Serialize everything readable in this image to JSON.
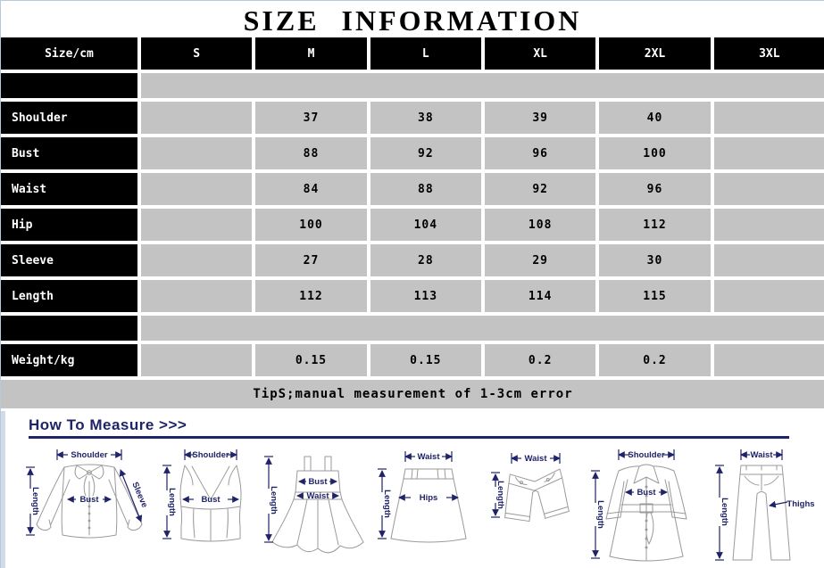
{
  "title": "SIZE INFORMATION",
  "table": {
    "header": [
      "Size/cm",
      "S",
      "M",
      "L",
      "XL",
      "2XL",
      "3XL"
    ],
    "rows": [
      {
        "type": "spacer",
        "label": ""
      },
      {
        "type": "data",
        "label": "Shoulder",
        "values": [
          "",
          "37",
          "38",
          "39",
          "40",
          ""
        ]
      },
      {
        "type": "data",
        "label": "Bust",
        "values": [
          "",
          "88",
          "92",
          "96",
          "100",
          ""
        ]
      },
      {
        "type": "data",
        "label": "Waist",
        "values": [
          "",
          "84",
          "88",
          "92",
          "96",
          ""
        ]
      },
      {
        "type": "data",
        "label": "Hip",
        "values": [
          "",
          "100",
          "104",
          "108",
          "112",
          ""
        ]
      },
      {
        "type": "data",
        "label": "Sleeve",
        "values": [
          "",
          "27",
          "28",
          "29",
          "30",
          ""
        ]
      },
      {
        "type": "data",
        "label": "Length",
        "values": [
          "",
          "112",
          "113",
          "114",
          "115",
          ""
        ]
      },
      {
        "type": "spacer",
        "label": ""
      },
      {
        "type": "data",
        "label": "Weight/kg",
        "values": [
          "",
          "0.15",
          "0.15",
          "0.2",
          "0.2",
          ""
        ]
      }
    ],
    "tip": "TipS;manual measurement of 1-3cm error"
  },
  "measure": {
    "heading": "How To Measure >>>",
    "diagrams": [
      {
        "name": "blouse",
        "labels": {
          "shoulder": "Shoulder",
          "length": "Length",
          "bust": "Bust",
          "sleeve": "Sleeve"
        }
      },
      {
        "name": "tank-top",
        "labels": {
          "shoulder": "Shoulder",
          "length": "Length",
          "bust": "Bust"
        }
      },
      {
        "name": "slip-dress",
        "labels": {
          "bust": "Bust",
          "waist": "Waist",
          "length": "Length"
        }
      },
      {
        "name": "skirt",
        "labels": {
          "waist": "Waist",
          "hips": "Hips",
          "length": "Length"
        }
      },
      {
        "name": "shorts",
        "labels": {
          "waist": "Waist",
          "length": "Length"
        }
      },
      {
        "name": "coat",
        "labels": {
          "shoulder": "Shoulder",
          "bust": "Bust",
          "length": "Length"
        }
      },
      {
        "name": "pants",
        "labels": {
          "waist": "Waist",
          "thighs": "Thighs",
          "length": "Length"
        }
      }
    ]
  },
  "colors": {
    "cell_gray": "#c3c3c3",
    "header_black": "#000000",
    "navy": "#1f2368",
    "outline_gray": "#9a9a9a",
    "edge_blue": "#b9c9da"
  }
}
